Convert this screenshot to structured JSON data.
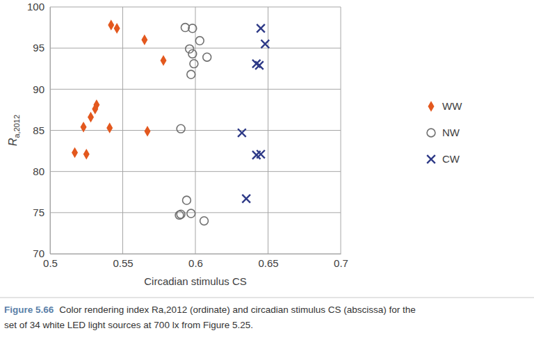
{
  "chart_data": {
    "type": "scatter",
    "xlabel": "Circadian stimulus CS",
    "ylabel": "Ra,2012",
    "caption": {
      "label": "Figure 5.66",
      "lines": [
        "Color rendering index Ra,2012 (ordinate) and circadian stimulus CS (abscissa) for the",
        "set of 34 white LED light sources at 700 lx from Figure 5.25."
      ]
    },
    "xlim": [
      0.5,
      0.7
    ],
    "xticks": [
      {
        "value": 0.5,
        "label": "0.5"
      },
      0.55,
      0.6,
      0.65,
      {
        "value": 0.7,
        "label": "0.7"
      }
    ],
    "ylim": [
      70,
      100
    ],
    "yticks": [
      70,
      75,
      80,
      85,
      90,
      95,
      100
    ],
    "grid": true,
    "legend": "right",
    "series": [
      {
        "name": "WW",
        "color": "#e3581e",
        "marker": "diamond",
        "x": [
          0.542,
          0.546,
          0.565,
          0.578,
          0.532,
          0.531,
          0.528,
          0.523,
          0.541,
          0.567,
          0.517,
          0.525
        ],
        "values": [
          97.8,
          97.4,
          96.0,
          93.5,
          88.1,
          87.6,
          86.6,
          85.4,
          85.3,
          84.9,
          82.3,
          82.1
        ]
      },
      {
        "name": "NW",
        "color": "#707070",
        "marker": "circle",
        "x": [
          0.593,
          0.598,
          0.603,
          0.596,
          0.598,
          0.608,
          0.599,
          0.597,
          0.59,
          0.594,
          0.59,
          0.589,
          0.597,
          0.606
        ],
        "values": [
          97.5,
          97.4,
          95.9,
          94.9,
          94.3,
          93.9,
          93.1,
          91.8,
          85.2,
          76.5,
          74.8,
          74.7,
          74.9,
          74.0
        ]
      },
      {
        "name": "CW",
        "color": "#2e3a87",
        "marker": "x",
        "x": [
          0.645,
          0.648,
          0.642,
          0.644,
          0.632,
          0.642,
          0.645,
          0.635
        ],
        "values": [
          97.4,
          95.5,
          93.1,
          92.9,
          84.7,
          82.0,
          82.1,
          76.7
        ]
      }
    ]
  }
}
